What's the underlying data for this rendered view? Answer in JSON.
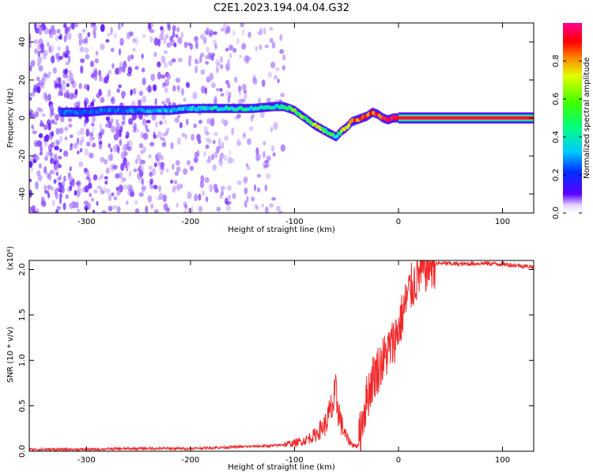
{
  "title": "C2E1.2023.194.04.04.G32",
  "chart_data": [
    {
      "type": "heatmap",
      "name": "spectrogram",
      "xlabel": "Height of straight line (km)",
      "ylabel": "Frequency (Hz)",
      "xlim": [
        -355,
        130
      ],
      "ylim": [
        -50,
        50
      ],
      "xticks": [
        -300,
        -200,
        -100,
        0,
        100
      ],
      "xtick_labels": [
        "-300",
        "-200",
        "-100",
        "0",
        "100"
      ],
      "yticks": [
        -40,
        -20,
        0,
        20,
        40
      ],
      "ytick_labels": [
        "-40",
        "-20",
        "0",
        "20",
        "40"
      ],
      "colorbar": {
        "label": "Normalized spectral amplitude",
        "range": [
          0,
          1
        ],
        "ticks": [
          0,
          0.2,
          0.4,
          0.6,
          0.8
        ],
        "tick_labels": [
          "0.0",
          "0.2",
          "0.4",
          "0.6",
          "0.8"
        ],
        "colormap": [
          "#ffffff",
          "#5a00ff",
          "#0050ff",
          "#00e0ff",
          "#00ff50",
          "#d0ff00",
          "#ff8000",
          "#ff0000",
          "#ff0080"
        ]
      },
      "ridge_frequency": {
        "x": [
          -325,
          -300,
          -280,
          -260,
          -240,
          -220,
          -200,
          -180,
          -160,
          -140,
          -120,
          -110,
          -100,
          -90,
          -80,
          -70,
          -60,
          -55,
          -50,
          -45,
          -40,
          -35,
          -30,
          -25,
          -20,
          -15,
          -10,
          -5,
          0,
          130
        ],
        "y": [
          3,
          3,
          4,
          4,
          4,
          4,
          5,
          5,
          5,
          5,
          6,
          6,
          4,
          0,
          -4,
          -7,
          -10,
          -7,
          -5,
          -2,
          -1,
          0,
          1,
          3,
          2,
          0,
          -1,
          0,
          0,
          0
        ],
        "amplitude": [
          0.3,
          0.25,
          0.3,
          0.3,
          0.35,
          0.35,
          0.4,
          0.45,
          0.45,
          0.45,
          0.45,
          0.5,
          0.55,
          0.6,
          0.65,
          0.55,
          0.5,
          0.6,
          0.7,
          0.75,
          0.85,
          0.95,
          0.9,
          0.85,
          0.9,
          0.95,
          1.0,
          1.0,
          1.0,
          1.0
        ]
      },
      "noise_region_x": [
        -355,
        -110
      ],
      "noise_region_y": [
        -50,
        50
      ]
    },
    {
      "type": "line",
      "name": "snr",
      "xlabel": "Height of straight line (km)",
      "ylabel": "SNR (10 * v/v)",
      "y_scale_note": "(x10⁴)",
      "xlim": [
        -355,
        130
      ],
      "ylim": [
        0,
        2.1
      ],
      "xticks": [
        -300,
        -200,
        -100,
        0,
        100
      ],
      "xtick_labels": [
        "-300",
        "-200",
        "-100",
        "0",
        "100"
      ],
      "yticks": [
        0,
        0.5,
        1.0,
        1.5,
        2.0
      ],
      "ytick_labels": [
        "0.0",
        "0.5",
        "1.0",
        "1.5",
        "2.0"
      ],
      "color": "#f0282a",
      "x": [
        -355,
        -300,
        -250,
        -200,
        -150,
        -120,
        -100,
        -90,
        -80,
        -70,
        -65,
        -60,
        -55,
        -50,
        -45,
        -40,
        -38,
        -35,
        -30,
        -25,
        -20,
        -15,
        -10,
        -5,
        0,
        5,
        10,
        20,
        30,
        40,
        60,
        80,
        100,
        130
      ],
      "y": [
        0.02,
        0.02,
        0.03,
        0.03,
        0.05,
        0.06,
        0.09,
        0.12,
        0.18,
        0.3,
        0.45,
        0.6,
        0.3,
        0.15,
        0.08,
        0.05,
        0.1,
        0.35,
        0.6,
        0.8,
        0.9,
        1.0,
        1.1,
        1.2,
        1.35,
        1.55,
        1.75,
        1.95,
        2.05,
        2.07,
        2.06,
        2.07,
        2.06,
        2.03
      ]
    }
  ]
}
